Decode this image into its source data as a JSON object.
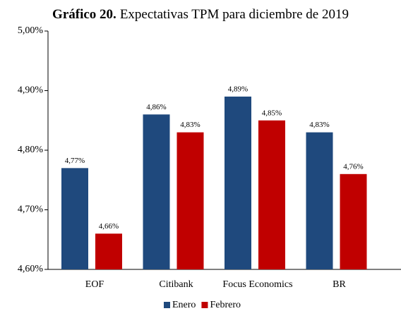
{
  "chart_data": {
    "type": "bar",
    "title_prefix": "Gráfico 20.",
    "title": "Expectativas TPM para diciembre de 2019",
    "categories": [
      "EOF",
      "Citibank",
      "Focus Economics",
      "BR"
    ],
    "series": [
      {
        "name": "Enero",
        "color": "#1f497d",
        "values": [
          4.77,
          4.86,
          4.89,
          4.83
        ],
        "value_labels": [
          "4,77%",
          "4,86%",
          "4,89%",
          "4,83%"
        ]
      },
      {
        "name": "Febrero",
        "color": "#c00000",
        "values": [
          4.66,
          4.83,
          4.85,
          4.76
        ],
        "value_labels": [
          "4,66%",
          "4,83%",
          "4,85%",
          "4,76%"
        ]
      }
    ],
    "ylim": [
      4.6,
      5.0
    ],
    "yticks": [
      {
        "value": 4.6,
        "label": "4,60%"
      },
      {
        "value": 4.7,
        "label": "4,70%"
      },
      {
        "value": 4.8,
        "label": "4,80%"
      },
      {
        "value": 4.9,
        "label": "4,90%"
      },
      {
        "value": 5.0,
        "label": "5,00%"
      }
    ],
    "legend": "bottom"
  }
}
